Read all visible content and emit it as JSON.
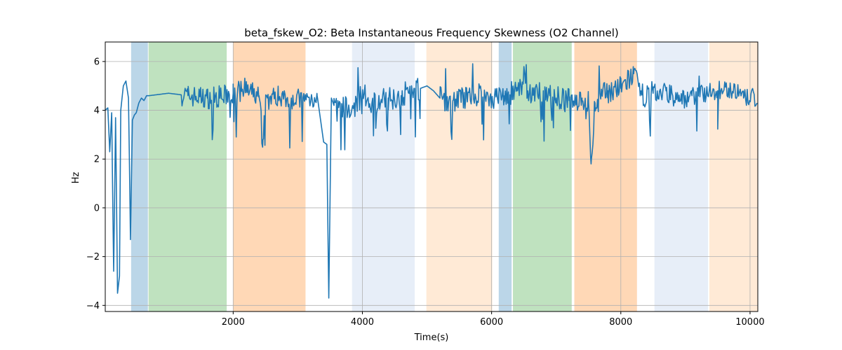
{
  "chart_data": {
    "type": "line",
    "title": "beta_fskew_O2: Beta Instantaneous Frequency Skewness (O2 Channel)",
    "xlabel": "Time(s)",
    "ylabel": "Hz",
    "xlim": [
      20,
      10120
    ],
    "ylim": [
      -4.25,
      6.8
    ],
    "xticks": [
      2000,
      4000,
      6000,
      8000,
      10000
    ],
    "xtick_labels": [
      "2000",
      "4000",
      "6000",
      "8000",
      "10000"
    ],
    "yticks": [
      -4,
      -2,
      0,
      2,
      4,
      6
    ],
    "ytick_labels": [
      "−4",
      "−2",
      "0",
      "2",
      "4",
      "6"
    ],
    "grid": true,
    "line_color": "#1f77b4",
    "bands": [
      {
        "x0": 420,
        "x1": 680,
        "color": "#1f77b4",
        "alpha": 0.3
      },
      {
        "x0": 690,
        "x1": 1900,
        "color": "#2ca02c",
        "alpha": 0.3
      },
      {
        "x0": 2000,
        "x1": 3120,
        "color": "#ff7f0e",
        "alpha": 0.3
      },
      {
        "x0": 3840,
        "x1": 4810,
        "color": "#aec7e8",
        "alpha": 0.3
      },
      {
        "x0": 4990,
        "x1": 6010,
        "color": "#ffbb78",
        "alpha": 0.3
      },
      {
        "x0": 6110,
        "x1": 6310,
        "color": "#1f77b4",
        "alpha": 0.3
      },
      {
        "x0": 6330,
        "x1": 7240,
        "color": "#2ca02c",
        "alpha": 0.3
      },
      {
        "x0": 7280,
        "x1": 8250,
        "color": "#ff7f0e",
        "alpha": 0.3
      },
      {
        "x0": 8520,
        "x1": 9350,
        "color": "#aec7e8",
        "alpha": 0.3
      },
      {
        "x0": 9370,
        "x1": 10120,
        "color": "#ffbb78",
        "alpha": 0.3
      }
    ],
    "series": [
      {
        "name": "beta_fskew_O2",
        "anchors_x": [
          20,
          60,
          90,
          120,
          150,
          180,
          210,
          240,
          260,
          300,
          340,
          380,
          410,
          440,
          470,
          500,
          540,
          580,
          620,
          660,
          700,
          1000,
          1300,
          1600,
          1900,
          2000,
          2200,
          2400,
          2460,
          2500,
          2700,
          2900,
          3100,
          3300,
          3400,
          3450,
          3480,
          3520,
          3560,
          3600,
          3700,
          3800,
          4000,
          4200,
          4400,
          4600,
          4800,
          4900,
          5000,
          5100,
          5200,
          5400,
          5600,
          5800,
          6000,
          6200,
          6400,
          6600,
          6800,
          6900,
          7000,
          7200,
          7400,
          7500,
          7540,
          7600,
          7800,
          8000,
          8100,
          8200,
          8300,
          8500,
          8700,
          8900,
          9100,
          9300,
          9500,
          9700,
          9900,
          10120
        ],
        "anchors_y": [
          4.0,
          4.1,
          2.3,
          3.9,
          -2.6,
          3.7,
          -3.5,
          -2.8,
          4.0,
          5.0,
          5.2,
          4.5,
          -1.3,
          3.6,
          3.8,
          3.9,
          4.3,
          4.5,
          4.4,
          4.6,
          4.6,
          4.7,
          4.6,
          4.5,
          4.6,
          4.7,
          4.8,
          4.6,
          2.8,
          4.4,
          4.6,
          4.5,
          4.4,
          4.6,
          2.7,
          2.6,
          -3.7,
          4.5,
          4.2,
          4.0,
          4.2,
          3.9,
          4.6,
          4.3,
          4.5,
          4.6,
          4.9,
          4.9,
          5.0,
          4.8,
          4.5,
          4.4,
          4.5,
          4.6,
          4.5,
          4.6,
          4.8,
          4.7,
          4.8,
          4.6,
          4.5,
          4.4,
          4.5,
          4.3,
          1.8,
          4.3,
          4.8,
          4.9,
          5.2,
          5.5,
          4.6,
          4.7,
          4.8,
          4.4,
          4.6,
          4.7,
          4.8,
          4.9,
          4.5,
          4.5
        ],
        "noise": [
          {
            "x0": 1200,
            "x1": 2000,
            "amp": 0.45
          },
          {
            "x0": 2000,
            "x1": 3300,
            "amp": 0.45
          },
          {
            "x0": 3560,
            "x1": 4900,
            "amp": 0.5
          },
          {
            "x0": 5200,
            "x1": 7300,
            "amp": 0.5
          },
          {
            "x0": 7300,
            "x1": 8500,
            "amp": 0.5
          },
          {
            "x0": 8500,
            "x1": 10120,
            "amp": 0.4
          }
        ]
      }
    ]
  }
}
